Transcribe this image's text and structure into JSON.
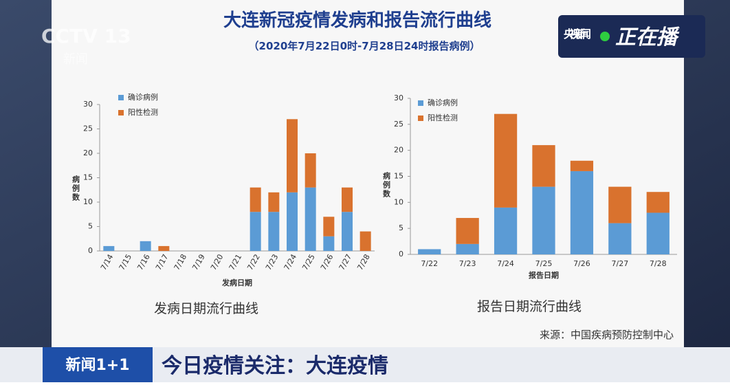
{
  "title": "大连新冠疫情发病和报告流行曲线",
  "subtitle": "（2020年7月22日0时-7月28日24时报告病例）",
  "logo": {
    "channel": "CCTV 13",
    "name": "新闻"
  },
  "live": {
    "brand": "央视新闻",
    "status": "正在播"
  },
  "source": "来源：中国疾病预防控制中心",
  "banner": {
    "program": "新闻1+1",
    "headline": "今日疫情关注：大连疫情"
  },
  "chart_data": [
    {
      "type": "bar",
      "stacked": true,
      "caption": "发病日期流行曲线",
      "x_label": "发病日期",
      "y_label": "病例数",
      "categories": [
        "7/14",
        "7/15",
        "7/16",
        "7/17",
        "7/18",
        "7/19",
        "7/20",
        "7/21",
        "7/22",
        "7/23",
        "7/24",
        "7/25",
        "7/26",
        "7/27",
        "7/28"
      ],
      "series": [
        {
          "name": "确诊病例",
          "color": "#5b9bd5",
          "values": [
            1,
            0,
            2,
            0,
            0,
            0,
            0,
            0,
            8,
            8,
            12,
            13,
            3,
            8,
            0
          ]
        },
        {
          "name": "阳性检测",
          "color": "#d9722e",
          "values": [
            0,
            0,
            0,
            1,
            0,
            0,
            0,
            0,
            5,
            4,
            15,
            7,
            4,
            5,
            4
          ]
        }
      ],
      "ylim": [
        0,
        30
      ],
      "yticks": [
        0,
        5,
        10,
        15,
        20,
        25,
        30
      ]
    },
    {
      "type": "bar",
      "stacked": true,
      "caption": "报告日期流行曲线",
      "x_label": "报告日期",
      "y_label": "病例数",
      "categories": [
        "7/22",
        "7/23",
        "7/24",
        "7/25",
        "7/26",
        "7/27",
        "7/28"
      ],
      "series": [
        {
          "name": "确诊病例",
          "color": "#5b9bd5",
          "values": [
            1,
            2,
            9,
            13,
            16,
            6,
            8
          ]
        },
        {
          "name": "阳性检测",
          "color": "#d9722e",
          "values": [
            0,
            5,
            18,
            8,
            2,
            7,
            4
          ]
        }
      ],
      "ylim": [
        0,
        30
      ],
      "yticks": [
        0,
        5,
        10,
        15,
        20,
        25,
        30
      ]
    }
  ]
}
